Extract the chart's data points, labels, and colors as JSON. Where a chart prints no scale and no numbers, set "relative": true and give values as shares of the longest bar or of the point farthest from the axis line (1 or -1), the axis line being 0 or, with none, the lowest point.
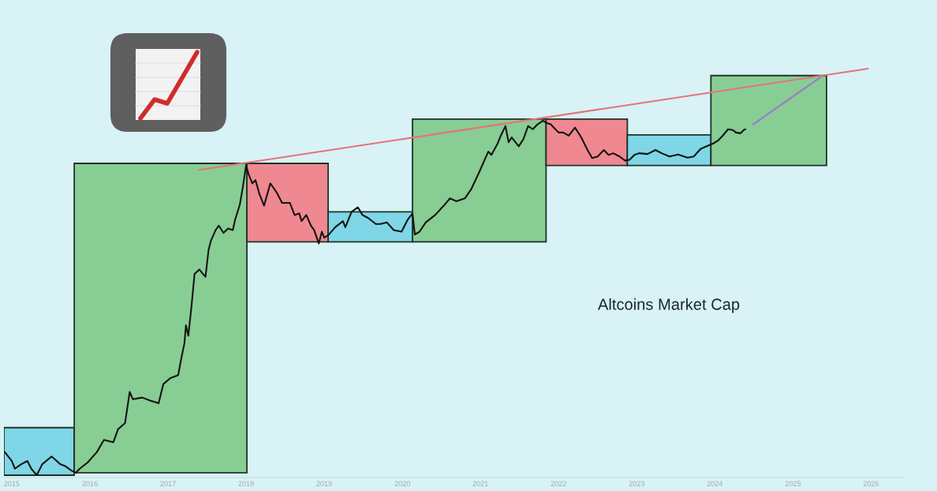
{
  "chart_data": {
    "type": "line",
    "title": "Altcoins Market Cap",
    "relative": true,
    "xlim": [
      2014.9,
      2026.41
    ],
    "xticks": [
      2015,
      2016,
      2017,
      2018,
      2019,
      2020,
      2021,
      2022,
      2023,
      2024,
      2025,
      2026
    ],
    "series": [
      {
        "type": "area",
        "color": "#7fd6e6",
        "x": [
          2014.9,
          2014.9,
          2015.8,
          2015.8
        ],
        "values": [
          0.0,
          0.117,
          0.117,
          0.0
        ]
      },
      {
        "type": "area",
        "color": "#88cd94",
        "x": [
          2015.8,
          2015.8,
          2018.01,
          2018.01
        ],
        "values": [
          0.006,
          0.767,
          0.767,
          0.006
        ]
      },
      {
        "type": "area",
        "color": "#ef8891",
        "x": [
          2018.01,
          2018.01,
          2019.05,
          2019.05
        ],
        "values": [
          0.574,
          0.767,
          0.767,
          0.574
        ]
      },
      {
        "type": "area",
        "color": "#7fd6e6",
        "x": [
          2019.05,
          2019.05,
          2020.13,
          2020.13
        ],
        "values": [
          0.574,
          0.648,
          0.648,
          0.574
        ]
      },
      {
        "type": "area",
        "color": "#88cd94",
        "x": [
          2020.13,
          2020.13,
          2021.84,
          2021.84
        ],
        "values": [
          0.574,
          0.876,
          0.876,
          0.574
        ]
      },
      {
        "type": "area",
        "color": "#ef8891",
        "x": [
          2021.84,
          2021.84,
          2022.88,
          2022.88
        ],
        "values": [
          0.762,
          0.876,
          0.876,
          0.762
        ]
      },
      {
        "type": "area",
        "color": "#7fd6e6",
        "x": [
          2022.88,
          2022.88,
          2023.95,
          2023.95
        ],
        "values": [
          0.762,
          0.837,
          0.837,
          0.762
        ]
      },
      {
        "type": "area",
        "color": "#88cd94",
        "x": [
          2023.95,
          2023.95,
          2025.43,
          2025.43
        ],
        "values": [
          0.762,
          0.983,
          0.983,
          0.762
        ]
      },
      {
        "color": "#141414",
        "x": [
          2014.91,
          2015.0,
          2015.04,
          2015.12,
          2015.2,
          2015.25,
          2015.32,
          2015.39,
          2015.51,
          2015.56,
          2015.62,
          2015.68,
          2015.76,
          2015.82,
          2015.87,
          2015.97,
          2016.09,
          2016.18,
          2016.3,
          2016.36,
          2016.45,
          2016.51,
          2016.55,
          2016.67,
          2016.78,
          2016.88,
          2016.94,
          2017.03,
          2017.13,
          2017.17,
          2017.21,
          2017.23,
          2017.26,
          2017.3,
          2017.34,
          2017.4,
          2017.48,
          2017.52,
          2017.55,
          2017.61,
          2017.65,
          2017.71,
          2017.77,
          2017.83,
          2017.86,
          2017.92,
          2017.96,
          2018.0,
          2018.03,
          2018.08,
          2018.12,
          2018.17,
          2018.23,
          2018.31,
          2018.39,
          2018.46,
          2018.56,
          2018.62,
          2018.68,
          2018.71,
          2018.77,
          2018.83,
          2018.87,
          2018.93,
          2018.97,
          2019.0,
          2019.06,
          2019.14,
          2019.24,
          2019.27,
          2019.35,
          2019.43,
          2019.49,
          2019.56,
          2019.66,
          2019.72,
          2019.8,
          2019.89,
          2019.99,
          2020.07,
          2020.13,
          2020.16,
          2020.22,
          2020.3,
          2020.42,
          2020.53,
          2020.61,
          2020.69,
          2020.8,
          2020.88,
          2020.99,
          2021.1,
          2021.14,
          2021.22,
          2021.26,
          2021.32,
          2021.36,
          2021.4,
          2021.49,
          2021.55,
          2021.61,
          2021.67,
          2021.73,
          2021.8,
          2021.84,
          2021.9,
          2021.94,
          2022.0,
          2022.06,
          2022.13,
          2022.21,
          2022.29,
          2022.37,
          2022.43,
          2022.5,
          2022.58,
          2022.64,
          2022.7,
          2022.78,
          2022.85,
          2022.91,
          2022.97,
          2023.03,
          2023.14,
          2023.24,
          2023.32,
          2023.42,
          2023.53,
          2023.65,
          2023.73,
          2023.82,
          2023.92,
          2023.98,
          2024.04,
          2024.1,
          2024.17,
          2024.23,
          2024.27,
          2024.33,
          2024.37,
          2024.39
        ],
        "values": [
          0.057,
          0.035,
          0.016,
          0.027,
          0.035,
          0.016,
          0.0,
          0.027,
          0.046,
          0.038,
          0.027,
          0.023,
          0.012,
          0.006,
          0.016,
          0.031,
          0.057,
          0.087,
          0.081,
          0.113,
          0.128,
          0.205,
          0.187,
          0.191,
          0.183,
          0.177,
          0.224,
          0.239,
          0.246,
          0.287,
          0.324,
          0.369,
          0.343,
          0.414,
          0.495,
          0.506,
          0.488,
          0.555,
          0.577,
          0.603,
          0.614,
          0.596,
          0.607,
          0.603,
          0.629,
          0.666,
          0.711,
          0.763,
          0.741,
          0.718,
          0.726,
          0.692,
          0.663,
          0.718,
          0.696,
          0.67,
          0.67,
          0.64,
          0.644,
          0.625,
          0.64,
          0.614,
          0.603,
          0.57,
          0.599,
          0.584,
          0.592,
          0.61,
          0.625,
          0.61,
          0.648,
          0.659,
          0.64,
          0.633,
          0.618,
          0.618,
          0.622,
          0.603,
          0.599,
          0.629,
          0.644,
          0.592,
          0.599,
          0.622,
          0.64,
          0.663,
          0.681,
          0.674,
          0.681,
          0.703,
          0.748,
          0.796,
          0.788,
          0.816,
          0.835,
          0.859,
          0.819,
          0.831,
          0.809,
          0.827,
          0.859,
          0.851,
          0.863,
          0.872,
          0.867,
          0.863,
          0.855,
          0.843,
          0.843,
          0.835,
          0.855,
          0.831,
          0.8,
          0.78,
          0.784,
          0.8,
          0.788,
          0.792,
          0.784,
          0.774,
          0.776,
          0.788,
          0.792,
          0.79,
          0.8,
          0.792,
          0.784,
          0.789,
          0.781,
          0.784,
          0.803,
          0.811,
          0.816,
          0.823,
          0.835,
          0.851,
          0.849,
          0.843,
          0.841,
          0.849,
          0.851
        ]
      },
      {
        "type": "line",
        "color": "#e5737a",
        "x": [
          2017.4,
          2025.96
        ],
        "values": [
          0.751,
          1.0
        ]
      },
      {
        "type": "line",
        "color": "#9a7bc8",
        "x": [
          2024.49,
          2025.36
        ],
        "values": [
          0.863,
          0.98
        ]
      }
    ]
  }
}
